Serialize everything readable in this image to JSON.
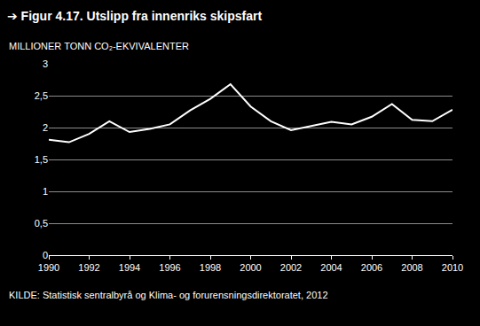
{
  "chart_data": {
    "type": "line",
    "title": "➔ Figur 4.17. Utslipp fra innenriks skipsfart",
    "y_label": "MILLIONER TONN CO₂-EKVIVALENTER",
    "source": "KILDE: Statistisk sentralbyrå og Klima- og forurensningsdirektoratet, 2012",
    "x": [
      1990,
      1991,
      1992,
      1993,
      1994,
      1995,
      1996,
      1997,
      1998,
      1999,
      2000,
      2001,
      2002,
      2003,
      2004,
      2005,
      2006,
      2007,
      2008,
      2009,
      2010
    ],
    "values": [
      1.81,
      1.77,
      1.9,
      2.1,
      1.93,
      1.98,
      2.05,
      2.27,
      2.45,
      2.68,
      2.33,
      2.1,
      1.96,
      2.03,
      2.09,
      2.05,
      2.17,
      2.37,
      2.12,
      2.1,
      2.28
    ],
    "color": "#ffffff",
    "xlim": [
      1990,
      2010
    ],
    "xticks": [
      1990,
      1992,
      1994,
      1996,
      1998,
      2000,
      2002,
      2004,
      2006,
      2008,
      2010
    ],
    "ylim": [
      0,
      3
    ],
    "yticks": [
      0,
      {
        "value": 0.5,
        "label": "0,5"
      },
      1,
      {
        "value": 1.5,
        "label": "1,5"
      },
      2,
      {
        "value": 2.5,
        "label": "2,5"
      },
      3
    ],
    "grid": true
  }
}
